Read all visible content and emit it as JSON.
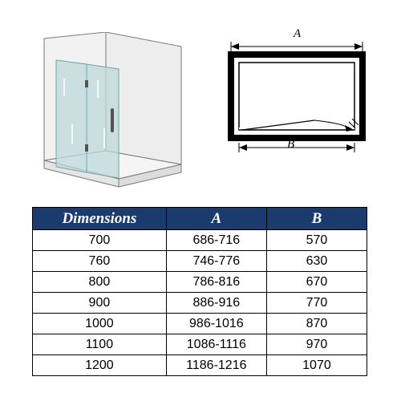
{
  "diagram": {
    "label_A": "A",
    "label_B": "B"
  },
  "table": {
    "headers": {
      "dim": "Dimensions",
      "a": "A",
      "b": "B"
    },
    "rows": [
      {
        "dim": "700",
        "a": "686-716",
        "b": "570"
      },
      {
        "dim": "760",
        "a": "746-776",
        "b": "630"
      },
      {
        "dim": "800",
        "a": "786-816",
        "b": "670"
      },
      {
        "dim": "900",
        "a": "886-916",
        "b": "770"
      },
      {
        "dim": "1000",
        "a": "986-1016",
        "b": "870"
      },
      {
        "dim": "1100",
        "a": "1086-1116",
        "b": "970"
      },
      {
        "dim": "1200",
        "a": "1186-1216",
        "b": "1070"
      }
    ]
  },
  "styling": {
    "header_bg": "#1b3a6e",
    "header_fg": "#ffffff",
    "border_color": "#000000",
    "glass_fill": "#bdd8db",
    "glass_opacity": 0.7,
    "wall_fill": "#f2f2f2",
    "wall_stroke": "#7a7a7a",
    "plan_frame_color": "#000000"
  }
}
